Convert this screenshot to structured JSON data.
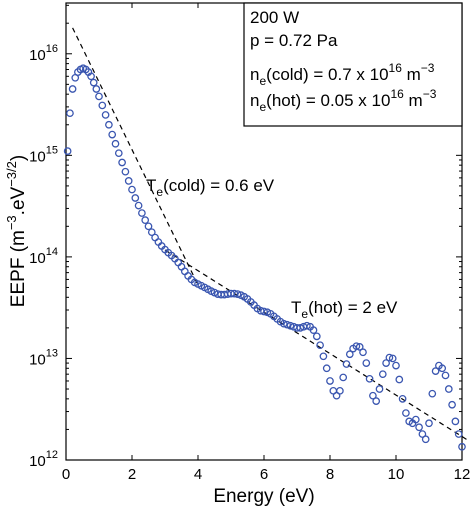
{
  "chart_data": {
    "type": "scatter",
    "xlabel": "Energy (eV)",
    "ylabel": "EEPF (m",
    "ylabel_sup1": "−3",
    "ylabel_mid": ".eV",
    "ylabel_sup2": "−3/2",
    "ylabel_end": ")",
    "xlim": [
      0,
      12
    ],
    "ylim_log10": [
      12,
      16.5
    ],
    "y_scale": "log",
    "x_ticks": [
      "0",
      "2",
      "4",
      "6",
      "8",
      "10",
      "12"
    ],
    "y_ticks": [
      {
        "base": "10",
        "exp": "12"
      },
      {
        "base": "10",
        "exp": "13"
      },
      {
        "base": "10",
        "exp": "14"
      },
      {
        "base": "10",
        "exp": "15"
      },
      {
        "base": "10",
        "exp": "16"
      }
    ],
    "marker_color": "#3a56b0",
    "legend_box": {
      "line1": "200 W",
      "line2": "p = 0.72 Pa",
      "line3_pre": "n",
      "line3_sub": "e",
      "line3_mid": "(cold) = 0.7 x 10",
      "line3_sup": "16",
      "line3_unit": " m",
      "line3_unit_sup": "−3",
      "line4_pre": "n",
      "line4_sub": "e",
      "line4_mid": "(hot) = 0.05 x 10",
      "line4_sup": "16",
      "line4_unit": " m",
      "line4_unit_sup": "−3"
    },
    "annotations": {
      "cold_pre": "T",
      "cold_sub": "e",
      "cold_post": "(cold) = 0.6 eV",
      "hot_pre": "T",
      "hot_sub": "e",
      "hot_post": "(hot) = 2 eV"
    },
    "fit_lines": [
      {
        "name": "cold",
        "x": [
          0.2,
          4.0
        ],
        "y": [
          1.8e+16,
          53000000000000.0
        ]
      },
      {
        "name": "hot",
        "x": [
          3.0,
          12.2
        ],
        "y": [
          117000000000000.0,
          1550000000000.0
        ]
      }
    ],
    "points": [
      [
        0.05,
        1100000000000000.0
      ],
      [
        0.12,
        2600000000000000.0
      ],
      [
        0.2,
        4500000000000000.0
      ],
      [
        0.28,
        5800000000000000.0
      ],
      [
        0.36,
        6600000000000000.0
      ],
      [
        0.44,
        7000000000000000.0
      ],
      [
        0.52,
        7200000000000000.0
      ],
      [
        0.6,
        7000000000000000.0
      ],
      [
        0.68,
        6600000000000000.0
      ],
      [
        0.76,
        6000000000000000.0
      ],
      [
        0.84,
        5200000000000000.0
      ],
      [
        0.92,
        4500000000000000.0
      ],
      [
        1.0,
        3800000000000000.0
      ],
      [
        1.1,
        3100000000000000.0
      ],
      [
        1.2,
        2500000000000000.0
      ],
      [
        1.3,
        2000000000000000.0
      ],
      [
        1.4,
        1600000000000000.0
      ],
      [
        1.5,
        1300000000000000.0
      ],
      [
        1.6,
        1050000000000000.0
      ],
      [
        1.7,
        850000000000000.0
      ],
      [
        1.8,
        690000000000000.0
      ],
      [
        1.9,
        560000000000000.0
      ],
      [
        2.0,
        460000000000000.0
      ],
      [
        2.1,
        380000000000000.0
      ],
      [
        2.2,
        320000000000000.0
      ],
      [
        2.3,
        270000000000000.0
      ],
      [
        2.4,
        230000000000000.0
      ],
      [
        2.5,
        200000000000000.0
      ],
      [
        2.6,
        175000000000000.0
      ],
      [
        2.7,
        155000000000000.0
      ],
      [
        2.8,
        140000000000000.0
      ],
      [
        2.9,
        128000000000000.0
      ],
      [
        3.0,
        118000000000000.0
      ],
      [
        3.1,
        110000000000000.0
      ],
      [
        3.2,
        103000000000000.0
      ],
      [
        3.3,
        96000000000000.0
      ],
      [
        3.4,
        88000000000000.0
      ],
      [
        3.5,
        80000000000000.0
      ],
      [
        3.6,
        72000000000000.0
      ],
      [
        3.7,
        65000000000000.0
      ],
      [
        3.8,
        60000000000000.0
      ],
      [
        3.9,
        56000000000000.0
      ],
      [
        4.0,
        54000000000000.0
      ],
      [
        4.1,
        52000000000000.0
      ],
      [
        4.2,
        50000000000000.0
      ],
      [
        4.3,
        48000000000000.0
      ],
      [
        4.4,
        46000000000000.0
      ],
      [
        4.5,
        44500000000000.0
      ],
      [
        4.6,
        43000000000000.0
      ],
      [
        4.7,
        42500000000000.0
      ],
      [
        4.8,
        42500000000000.0
      ],
      [
        4.9,
        43000000000000.0
      ],
      [
        5.0,
        43500000000000.0
      ],
      [
        5.1,
        43500000000000.0
      ],
      [
        5.2,
        43000000000000.0
      ],
      [
        5.3,
        42000000000000.0
      ],
      [
        5.4,
        40500000000000.0
      ],
      [
        5.5,
        38500000000000.0
      ],
      [
        5.6,
        36000000000000.0
      ],
      [
        5.7,
        33500000000000.0
      ],
      [
        5.8,
        31000000000000.0
      ],
      [
        5.9,
        29500000000000.0
      ],
      [
        6.0,
        29000000000000.0
      ],
      [
        6.1,
        28500000000000.0
      ],
      [
        6.2,
        27500000000000.0
      ],
      [
        6.3,
        26000000000000.0
      ],
      [
        6.4,
        24500000000000.0
      ],
      [
        6.5,
        23000000000000.0
      ],
      [
        6.6,
        22000000000000.0
      ],
      [
        6.7,
        21500000000000.0
      ],
      [
        6.8,
        21000000000000.0
      ],
      [
        6.9,
        20500000000000.0
      ],
      [
        7.0,
        20000000000000.0
      ],
      [
        7.1,
        20000000000000.0
      ],
      [
        7.2,
        20500000000000.0
      ],
      [
        7.3,
        21000000000000.0
      ],
      [
        7.4,
        20500000000000.0
      ],
      [
        7.5,
        19000000000000.0
      ],
      [
        7.6,
        16500000000000.0
      ],
      [
        7.7,
        13500000000000.0
      ],
      [
        7.8,
        10500000000000.0
      ],
      [
        7.9,
        8000000000000.0
      ],
      [
        8.0,
        6000000000000.0
      ],
      [
        8.1,
        4800000000000.0
      ],
      [
        8.2,
        4300000000000.0
      ],
      [
        8.3,
        4800000000000.0
      ],
      [
        8.4,
        6500000000000.0
      ],
      [
        8.5,
        8800000000000.0
      ],
      [
        8.6,
        11000000000000.0
      ],
      [
        8.7,
        12500000000000.0
      ],
      [
        8.8,
        13200000000000.0
      ],
      [
        8.9,
        13000000000000.0
      ],
      [
        9.0,
        11500000000000.0
      ],
      [
        9.1,
        9000000000000.0
      ],
      [
        9.2,
        6300000000000.0
      ],
      [
        9.3,
        4300000000000.0
      ],
      [
        9.4,
        3800000000000.0
      ],
      [
        9.5,
        5000000000000.0
      ],
      [
        9.6,
        7000000000000.0
      ],
      [
        9.7,
        9000000000000.0
      ],
      [
        9.8,
        10200000000000.0
      ],
      [
        9.9,
        10000000000000.0
      ],
      [
        10.0,
        8500000000000.0
      ],
      [
        10.1,
        6200000000000.0
      ],
      [
        10.2,
        4000000000000.0
      ],
      [
        10.3,
        2900000000000.0
      ],
      [
        10.4,
        2400000000000.0
      ],
      [
        10.5,
        2300000000000.0
      ],
      [
        10.6,
        2500000000000.0
      ],
      [
        10.7,
        2100000000000.0
      ],
      [
        10.8,
        1800000000000.0
      ],
      [
        10.9,
        1600000000000.0
      ],
      [
        11.0,
        2300000000000.0
      ],
      [
        11.1,
        4500000000000.0
      ],
      [
        11.2,
        7500000000000.0
      ],
      [
        11.3,
        8500000000000.0
      ],
      [
        11.4,
        8000000000000.0
      ],
      [
        11.5,
        6800000000000.0
      ],
      [
        11.6,
        5000000000000.0
      ],
      [
        11.7,
        3500000000000.0
      ],
      [
        11.8,
        2400000000000.0
      ],
      [
        11.9,
        1800000000000.0
      ],
      [
        12.0,
        1350000000000.0
      ]
    ]
  }
}
